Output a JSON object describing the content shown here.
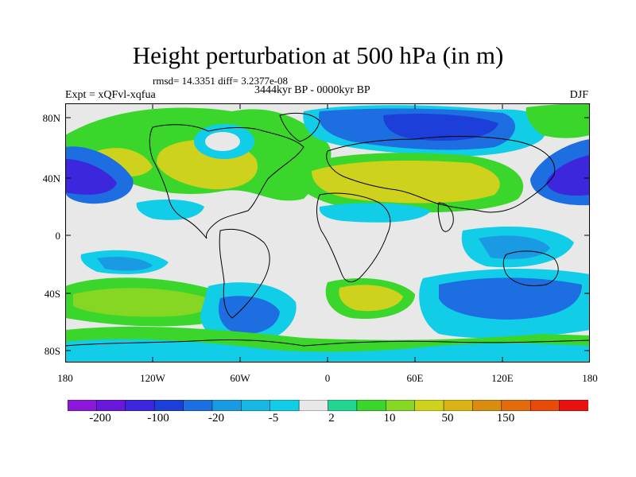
{
  "title": "Height perturbation at 500 hPa (in m)",
  "rmsd_text": "rmsd= 14.3351 diff= 3.2377e-08",
  "expt_text": "Expt = xQFvl-xqfua",
  "period_text": "3444kyr BP - 0000kyr BP",
  "season": "DJF",
  "map": {
    "lat_labels": [
      "80N",
      "40N",
      "0",
      "40S",
      "80S"
    ],
    "lon_labels": [
      "180",
      "120W",
      "60W",
      "0",
      "60E",
      "120E",
      "180"
    ]
  },
  "colorbar": {
    "colors": [
      "#8b17d8",
      "#6a17dc",
      "#3d27dd",
      "#1c3fd9",
      "#1d6ee0",
      "#1a9ae3",
      "#16b7e3",
      "#11cde8",
      "#e8e8e8",
      "#22d68f",
      "#3bd62c",
      "#86d624",
      "#cfd21c",
      "#d9b414",
      "#d98d10",
      "#e46b0c",
      "#e84a0a",
      "#e81010"
    ],
    "labels": [
      "-200",
      "-100",
      "-20",
      "-5",
      "2",
      "10",
      "50",
      "150"
    ]
  },
  "legend_colors": {
    "dark_blue": "#3d27dd",
    "mid_blue": "#1d6ee0",
    "light_blue": "#11cde8",
    "neutral": "#e8e8e8",
    "green": "#3bd62c",
    "yellow_green": "#86d624",
    "olive": "#cfd21c"
  }
}
